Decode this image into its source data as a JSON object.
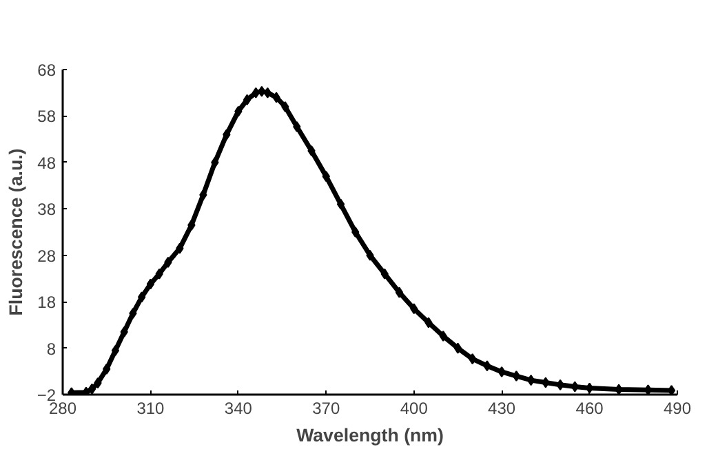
{
  "chart_data": {
    "type": "line",
    "xlabel": "Wavelength (nm)",
    "ylabel": "Fluorescence (a.u.)",
    "x": [
      283,
      288,
      290,
      292,
      295,
      298,
      301,
      304,
      307,
      310,
      313,
      316,
      320,
      324,
      328,
      332,
      336,
      340,
      343,
      346,
      348,
      350,
      353,
      356,
      360,
      365,
      370,
      375,
      380,
      385,
      390,
      395,
      400,
      405,
      410,
      415,
      420,
      425,
      430,
      435,
      440,
      445,
      450,
      455,
      460,
      470,
      480,
      488
    ],
    "series": [
      {
        "color": "#000000",
        "values": [
          -1.6,
          -1.5,
          -0.8,
          0.5,
          3.5,
          7.5,
          11.5,
          15.5,
          19,
          21.8,
          24,
          26.5,
          29.5,
          34.5,
          41,
          48,
          54,
          59,
          61.5,
          63,
          63.3,
          63,
          62,
          60,
          55.7,
          50.5,
          45,
          39,
          33,
          28,
          24,
          20,
          16.5,
          13.5,
          10.6,
          8,
          5.7,
          4.2,
          2.9,
          2,
          1.1,
          0.6,
          0.1,
          -0.3,
          -0.6,
          -0.9,
          -1.0,
          -1.1
        ]
      }
    ],
    "xlim": [
      280,
      490
    ],
    "xticks": [
      280,
      310,
      340,
      370,
      400,
      430,
      460,
      490
    ],
    "ylim": [
      -2,
      68
    ],
    "yticks": [
      -2,
      8,
      18,
      28,
      38,
      48,
      58,
      68
    ],
    "marker": "diamond",
    "line_style": "solid"
  }
}
